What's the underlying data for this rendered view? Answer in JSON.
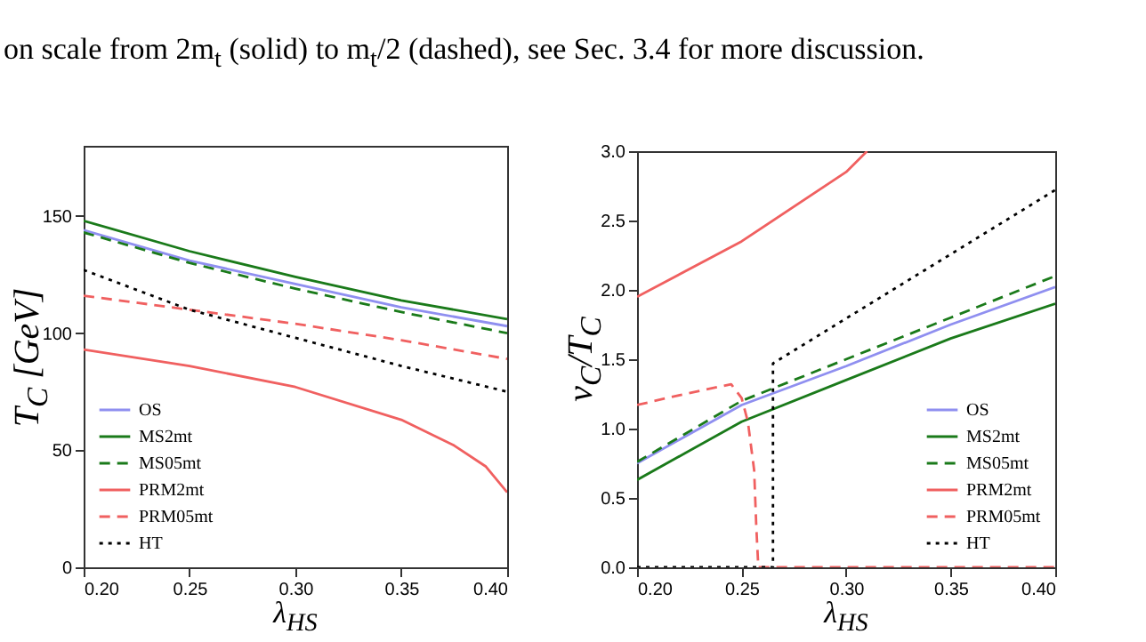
{
  "chart_data": [
    {
      "type": "line",
      "xlabel": "λ$_{HS}$",
      "ylabel": "T$_{C}$ [GeV]",
      "annotations": [
        "on scale from 2m$_{t}$ (solid) to m$_{t}$/2 (dashed), see Sec. 3.4 for more discussion."
      ],
      "x": [
        0.2,
        0.25,
        0.3,
        0.35,
        0.4
      ],
      "xlim": [
        0.2,
        0.4
      ],
      "xticks": [
        {
          "value": 0.2,
          "label": "0.20"
        },
        {
          "value": 0.25,
          "label": "0.25"
        },
        {
          "value": 0.3,
          "label": "0.30"
        },
        {
          "value": 0.35,
          "label": "0.35"
        },
        {
          "value": 0.4,
          "label": "0.40"
        }
      ],
      "ylim": [
        0,
        180
      ],
      "yticks": [
        0,
        50,
        100,
        150
      ],
      "grid": false,
      "legend": "bottom left",
      "series": [
        {
          "name": "OS",
          "color": "#8f8ff0",
          "line_style": "solid",
          "values": [
            144,
            131,
            121,
            111,
            103
          ]
        },
        {
          "name": "MS2mt",
          "color": "#1a7a1a",
          "line_style": "solid",
          "values": [
            148,
            135,
            124,
            114,
            106
          ]
        },
        {
          "name": "MS05mt",
          "color": "#1a7a1a",
          "line_style": "dashed",
          "values": [
            143,
            130,
            119,
            109,
            100
          ]
        },
        {
          "name": "PRM2mt",
          "color": "#f06060",
          "line_style": "solid",
          "x": [
            0.2,
            0.25,
            0.3,
            0.35,
            0.375,
            0.39,
            0.4
          ],
          "values": [
            93,
            86,
            77,
            63,
            52,
            43,
            32
          ]
        },
        {
          "name": "PRM05mt",
          "color": "#f06060",
          "line_style": "dashed",
          "values": [
            116,
            110,
            104,
            97,
            89
          ]
        },
        {
          "name": "HT",
          "color": "#000000",
          "line_style": "dotted",
          "values": [
            127,
            110,
            98,
            86,
            75
          ]
        }
      ]
    },
    {
      "type": "line",
      "xlabel": "λ$_{HS}$",
      "ylabel": "v$_{C}$/T$_{C}$",
      "x": [
        0.2,
        0.25,
        0.3,
        0.35,
        0.4
      ],
      "xlim": [
        0.2,
        0.4
      ],
      "xticks": [
        {
          "value": 0.2,
          "label": "0.20"
        },
        {
          "value": 0.25,
          "label": "0.25"
        },
        {
          "value": 0.3,
          "label": "0.30"
        },
        {
          "value": 0.35,
          "label": "0.35"
        },
        {
          "value": 0.4,
          "label": "0.40"
        }
      ],
      "ylim": [
        0,
        3
      ],
      "yticks": [
        {
          "value": 0,
          "label": "0.0"
        },
        {
          "value": 0.5,
          "label": "0.5"
        },
        {
          "value": 1,
          "label": "1.0"
        },
        {
          "value": 1.5,
          "label": "1.5"
        },
        {
          "value": 2,
          "label": "2.0"
        },
        {
          "value": 2.5,
          "label": "2.5"
        },
        {
          "value": 3,
          "label": "3.0"
        }
      ],
      "grid": false,
      "legend": "bottom right",
      "series": [
        {
          "name": "OS",
          "color": "#8f8ff0",
          "line_style": "solid",
          "values": [
            0.75,
            1.17,
            1.45,
            1.75,
            2.02
          ]
        },
        {
          "name": "MS2mt",
          "color": "#1a7a1a",
          "line_style": "solid",
          "values": [
            0.63,
            1.05,
            1.35,
            1.65,
            1.9
          ]
        },
        {
          "name": "MS05mt",
          "color": "#1a7a1a",
          "line_style": "dashed",
          "values": [
            0.76,
            1.2,
            1.5,
            1.8,
            2.1
          ]
        },
        {
          "name": "PRM2mt",
          "color": "#f06060",
          "line_style": "solid",
          "x": [
            0.2,
            0.25,
            0.3,
            0.31
          ],
          "values": [
            1.95,
            2.35,
            2.85,
            3.0
          ]
        },
        {
          "name": "PRM05mt",
          "color": "#f06060",
          "line_style": "dashed",
          "x": [
            0.2,
            0.22,
            0.245,
            0.25,
            0.253,
            0.256,
            0.257,
            0.258,
            0.4
          ],
          "values": [
            1.17,
            1.24,
            1.32,
            1.22,
            1.05,
            0.7,
            0.3,
            0,
            0
          ]
        },
        {
          "name": "HT",
          "color": "#000000",
          "line_style": "dotted",
          "x": [
            0.2,
            0.265,
            0.265,
            0.4
          ],
          "values": [
            0,
            0,
            1.47,
            2.72
          ]
        }
      ]
    }
  ]
}
